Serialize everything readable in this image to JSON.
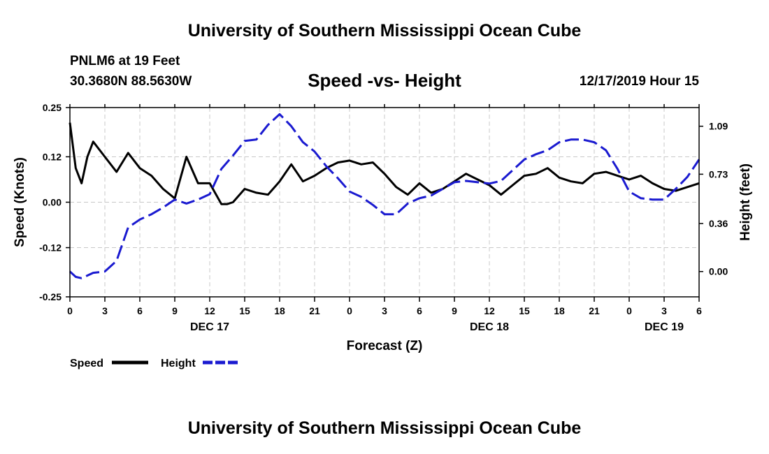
{
  "header": {
    "title": "University of Southern Mississippi Ocean Cube",
    "station": "PNLM6 at 19 Feet",
    "coords": "30.3680N 88.5630W",
    "date": "12/17/2019 Hour 15"
  },
  "footer": {
    "title": "University of Southern Mississippi Ocean Cube"
  },
  "colors": {
    "speed": "#000000",
    "height": "#1a1ad0",
    "grid": "#c8c8c8"
  },
  "chart_data": {
    "type": "line",
    "title": "Speed -vs- Height",
    "xlabel": "Forecast (Z)",
    "ylabel_left": "Speed (Knots)",
    "ylabel_right": "Height (feet)",
    "grid": true,
    "xlim": [
      0,
      54
    ],
    "ylim_left": [
      -0.25,
      0.25
    ],
    "ylim_right": [
      -0.19,
      1.23
    ],
    "x_ticks": [
      0,
      3,
      6,
      9,
      12,
      15,
      18,
      21,
      24,
      27,
      30,
      33,
      36,
      39,
      42,
      45,
      48,
      51,
      54
    ],
    "x_tick_labels": [
      "0",
      "3",
      "6",
      "9",
      "12",
      "15",
      "18",
      "21",
      "0",
      "3",
      "6",
      "9",
      "12",
      "15",
      "18",
      "21",
      "0",
      "3",
      "6"
    ],
    "date_labels": [
      {
        "x": 12,
        "label": "DEC 17"
      },
      {
        "x": 36,
        "label": "DEC 18"
      },
      {
        "x": 51,
        "label": "DEC 19"
      }
    ],
    "y_left_ticks": [
      0.25,
      0.12,
      0.0,
      -0.12,
      -0.25
    ],
    "y_left_tick_labels": [
      "0.25",
      "0.12",
      "0.00",
      "-0.12",
      "-0.25"
    ],
    "y_right_ticks": [
      1.09,
      0.73,
      0.36,
      0.0
    ],
    "y_right_tick_labels": [
      "1.09",
      "0.73",
      "0.36",
      "0.00"
    ],
    "legend": [
      {
        "name": "Speed",
        "style": "solid"
      },
      {
        "name": "Height",
        "style": "dashed"
      }
    ],
    "series": [
      {
        "name": "Speed",
        "axis": "left",
        "style": "solid",
        "x": [
          0,
          0.5,
          1,
          1.5,
          2,
          3,
          4,
          5,
          6,
          7,
          8,
          9,
          10,
          11,
          12,
          13,
          13.5,
          14,
          15,
          16,
          17,
          18,
          19,
          20,
          21,
          22,
          23,
          24,
          25,
          26,
          27,
          28,
          29,
          30,
          31,
          32,
          33,
          34,
          35,
          36,
          37,
          38,
          39,
          40,
          41,
          42,
          43,
          44,
          45,
          46,
          47,
          48,
          49,
          50,
          51,
          52,
          53,
          54
        ],
        "values": [
          0.21,
          0.09,
          0.05,
          0.12,
          0.16,
          0.12,
          0.08,
          0.13,
          0.09,
          0.07,
          0.035,
          0.01,
          0.12,
          0.05,
          0.05,
          -0.005,
          -0.005,
          0.0,
          0.035,
          0.025,
          0.02,
          0.055,
          0.1,
          0.055,
          0.07,
          0.09,
          0.105,
          0.11,
          0.1,
          0.105,
          0.075,
          0.04,
          0.02,
          0.05,
          0.025,
          0.035,
          0.055,
          0.075,
          0.06,
          0.045,
          0.02,
          0.045,
          0.07,
          0.075,
          0.09,
          0.065,
          0.055,
          0.05,
          0.075,
          0.08,
          0.07,
          0.06,
          0.07,
          0.05,
          0.035,
          0.03,
          0.04,
          0.05
        ]
      },
      {
        "name": "Height",
        "axis": "right",
        "style": "dashed",
        "x": [
          0,
          0.5,
          1,
          1.5,
          2,
          3,
          4,
          5,
          6,
          7,
          8,
          9,
          10,
          11,
          12,
          13,
          14,
          15,
          16,
          17,
          18,
          19,
          20,
          21,
          22,
          23,
          24,
          25,
          26,
          27,
          28,
          29,
          30,
          31,
          32,
          33,
          34,
          35,
          36,
          37,
          38,
          39,
          40,
          41,
          42,
          43,
          44,
          45,
          46,
          47,
          48,
          49,
          50,
          51,
          52,
          53,
          54
        ],
        "values": [
          0.0,
          -0.04,
          -0.05,
          -0.03,
          -0.01,
          0.0,
          0.08,
          0.33,
          0.39,
          0.43,
          0.48,
          0.54,
          0.51,
          0.54,
          0.58,
          0.77,
          0.87,
          0.98,
          0.99,
          1.1,
          1.18,
          1.09,
          0.97,
          0.9,
          0.79,
          0.7,
          0.6,
          0.56,
          0.5,
          0.43,
          0.43,
          0.51,
          0.55,
          0.57,
          0.62,
          0.67,
          0.68,
          0.67,
          0.66,
          0.68,
          0.76,
          0.84,
          0.88,
          0.91,
          0.97,
          0.99,
          0.99,
          0.97,
          0.91,
          0.77,
          0.6,
          0.55,
          0.54,
          0.54,
          0.62,
          0.71,
          0.84
        ]
      }
    ]
  }
}
